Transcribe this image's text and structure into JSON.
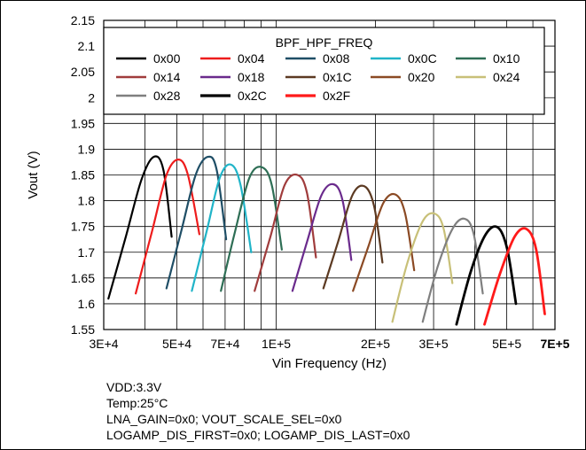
{
  "chart_data": {
    "type": "line",
    "title": "",
    "xlabel": "Vin Frequency (Hz)",
    "ylabel": "Vout (V)",
    "x_scale": "log",
    "xlim": [
      30000,
      700000
    ],
    "ylim": [
      1.55,
      2.15
    ],
    "grid": true,
    "x_ticks": [
      {
        "value": 30000,
        "label": "3E+4",
        "bold": false
      },
      {
        "value": 50000,
        "label": "5E+4",
        "bold": false
      },
      {
        "value": 70000,
        "label": "7E+4",
        "bold": false
      },
      {
        "value": 100000,
        "label": "1E+5",
        "bold": false
      },
      {
        "value": 200000,
        "label": "2E+5",
        "bold": false
      },
      {
        "value": 300000,
        "label": "3E+5",
        "bold": false
      },
      {
        "value": 500000,
        "label": "5E+5",
        "bold": false
      },
      {
        "value": 700000,
        "label": "7E+5",
        "bold": true
      }
    ],
    "x_minor_ticks": [
      40000,
      60000,
      80000,
      90000,
      400000,
      600000
    ],
    "y_ticks": [
      "1.55",
      "1.6",
      "1.65",
      "1.7",
      "1.75",
      "1.8",
      "1.85",
      "1.9",
      "1.95",
      "2",
      "2.05",
      "2.1",
      "2.15"
    ],
    "legend": {
      "title": "BPF_HPF_FREQ",
      "placement": "top",
      "columns": 5
    },
    "series": [
      {
        "name": "0x00",
        "color": "#000000",
        "width": 2.2,
        "x": [
          31000,
          35000,
          39000,
          42500,
          45500,
          48200
        ],
        "y": [
          1.61,
          1.73,
          1.84,
          1.885,
          1.86,
          1.73
        ]
      },
      {
        "name": "0x04",
        "color": "#ee1c1c",
        "width": 2.2,
        "x": [
          37500,
          42000,
          46500,
          50500,
          54000,
          58500
        ],
        "y": [
          1.62,
          1.74,
          1.85,
          1.88,
          1.85,
          1.735
        ]
      },
      {
        "name": "0x08",
        "color": "#1f4e66",
        "width": 2.2,
        "x": [
          46500,
          51500,
          57000,
          62000,
          66000,
          70500
        ],
        "y": [
          1.63,
          1.74,
          1.85,
          1.885,
          1.86,
          1.725
        ]
      },
      {
        "name": "0x0C",
        "color": "#20b4c8",
        "width": 2.2,
        "x": [
          55500,
          61500,
          67500,
          73000,
          78000,
          84000
        ],
        "y": [
          1.625,
          1.74,
          1.845,
          1.87,
          1.83,
          1.7
        ]
      },
      {
        "name": "0x10",
        "color": "#2e6e55",
        "width": 2.2,
        "x": [
          68000,
          75000,
          83000,
          90500,
          97000,
          104000
        ],
        "y": [
          1.625,
          1.74,
          1.845,
          1.865,
          1.83,
          1.705
        ]
      },
      {
        "name": "0x14",
        "color": "#a03c3c",
        "width": 2.2,
        "x": [
          86000,
          96000,
          106000,
          116000,
          124000,
          132000
        ],
        "y": [
          1.625,
          1.73,
          1.83,
          1.85,
          1.815,
          1.69
        ]
      },
      {
        "name": "0x18",
        "color": "#6a2a8c",
        "width": 2.2,
        "x": [
          112000,
          124000,
          137000,
          149000,
          159000,
          169000
        ],
        "y": [
          1.625,
          1.72,
          1.81,
          1.832,
          1.8,
          1.685
        ]
      },
      {
        "name": "0x1C",
        "color": "#5c3a22",
        "width": 2.2,
        "x": [
          139000,
          154000,
          170000,
          185000,
          198000,
          210000
        ],
        "y": [
          1.63,
          1.72,
          1.81,
          1.828,
          1.79,
          1.68
        ]
      },
      {
        "name": "0x20",
        "color": "#8b4a24",
        "width": 2.2,
        "x": [
          171000,
          190000,
          211000,
          230000,
          246000,
          262000
        ],
        "y": [
          1.625,
          1.71,
          1.795,
          1.812,
          1.775,
          1.665
        ]
      },
      {
        "name": "0x24",
        "color": "#c8c078",
        "width": 2.2,
        "x": [
          225000,
          250000,
          278000,
          302000,
          322000,
          342000
        ],
        "y": [
          1.565,
          1.68,
          1.76,
          1.775,
          1.745,
          1.64
        ]
      },
      {
        "name": "0x28",
        "color": "#7f7f7f",
        "width": 2.2,
        "x": [
          278000,
          308000,
          342000,
          372000,
          397000,
          423000
        ],
        "y": [
          1.565,
          1.67,
          1.745,
          1.765,
          1.735,
          1.62
        ]
      },
      {
        "name": "0x2C",
        "color": "#000000",
        "width": 2.8,
        "x": [
          352000,
          390000,
          432000,
          470000,
          502000,
          533000
        ],
        "y": [
          1.56,
          1.665,
          1.735,
          1.748,
          1.705,
          1.6
        ]
      },
      {
        "name": "0x2F",
        "color": "#ff1a1a",
        "width": 2.8,
        "x": [
          428000,
          475000,
          528000,
          574000,
          614000,
          652000
        ],
        "y": [
          1.56,
          1.655,
          1.73,
          1.745,
          1.705,
          1.58
        ]
      }
    ]
  },
  "notes": [
    "VDD:3.3V",
    "Temp:25°C",
    "LNA_GAIN=0x0; VOUT_SCALE_SEL=0x0",
    "LOGAMP_DIS_FIRST=0x0; LOGAMP_DIS_LAST=0x0"
  ]
}
